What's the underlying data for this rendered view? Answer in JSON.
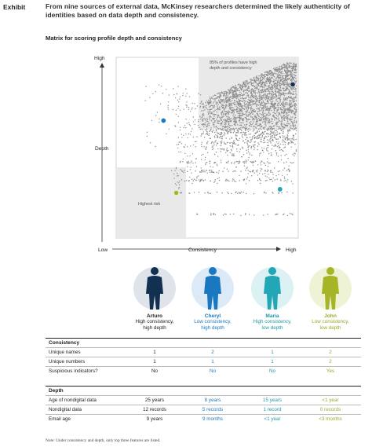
{
  "exhibit_label": "Exhibit",
  "headline": "From nine sources of external data, McKinsey researchers determined the likely authenticity of identities based on data depth and consistency.",
  "subtitle": "Matrix for scoring profile depth and consistency",
  "colors": {
    "arturo": "#12304f",
    "cheryl": "#1a78c0",
    "maria": "#23a6b5",
    "john": "#a6b428",
    "dots": "#8e8e8e",
    "shade": "#e9e9e9"
  },
  "chart_data": {
    "type": "scatter",
    "title": "Matrix for scoring profile depth and consistency",
    "xlabel": "Consistency",
    "ylabel": "Depth",
    "x_low": "Low",
    "x_high": "High",
    "y_high": "High",
    "xlim": [
      0,
      1
    ],
    "ylim": [
      0,
      1
    ],
    "annotations": {
      "top_right": "85% of profiles have high depth and consistency",
      "bottom_left": "Highest risk"
    },
    "highlighted": [
      {
        "name": "Arturo",
        "x": 0.97,
        "y": 0.85,
        "color": "#12304f"
      },
      {
        "name": "Cheryl",
        "x": 0.26,
        "y": 0.65,
        "color": "#1a78c0"
      },
      {
        "name": "Maria",
        "x": 0.9,
        "y": 0.27,
        "color": "#23a6b5"
      },
      {
        "name": "John",
        "x": 0.33,
        "y": 0.25,
        "color": "#a6b428"
      }
    ]
  },
  "people": [
    {
      "name": "Arturo",
      "desc1": "High consistency,",
      "desc2": "high depth",
      "color": "#12304f",
      "halo": "#dfe3ea",
      "text_color": "#222222"
    },
    {
      "name": "Cheryl",
      "desc1": "Low consistency,",
      "desc2": "high depth",
      "color": "#1a78c0",
      "halo": "#dbeaf6",
      "text_color": "#1a78c0"
    },
    {
      "name": "Maria",
      "desc1": "High consistency,",
      "desc2": "low depth",
      "color": "#23a6b5",
      "halo": "#dcf1f3",
      "text_color": "#1f98a6"
    },
    {
      "name": "John",
      "desc1": "Low consistency,",
      "desc2": "low depth",
      "color": "#a6b428",
      "halo": "#eff3d6",
      "text_color": "#9aa82a"
    }
  ],
  "consistency": {
    "title": "Consistency",
    "rows": [
      {
        "label": "Unique names",
        "values": [
          "1",
          "2",
          "1",
          "2"
        ]
      },
      {
        "label": "Unique numbers",
        "values": [
          "1",
          "1",
          "1",
          "2"
        ]
      },
      {
        "label": "Suspicious indicators?",
        "values": [
          "No",
          "No",
          "No",
          "Yes"
        ]
      }
    ]
  },
  "depth": {
    "title": "Depth",
    "rows": [
      {
        "label": "Age of nondigital data",
        "values": [
          "25 years",
          "8 years",
          "15 years",
          "<1 year"
        ]
      },
      {
        "label": "Nondigital data",
        "values": [
          "12 records",
          "5 records",
          "1 record",
          "0 records"
        ]
      },
      {
        "label": "Email age",
        "values": [
          "9 years",
          "9 months",
          "<1 year",
          "<3 months"
        ]
      }
    ]
  },
  "note": "Note: Under consistency and depth, only top three features are listed."
}
